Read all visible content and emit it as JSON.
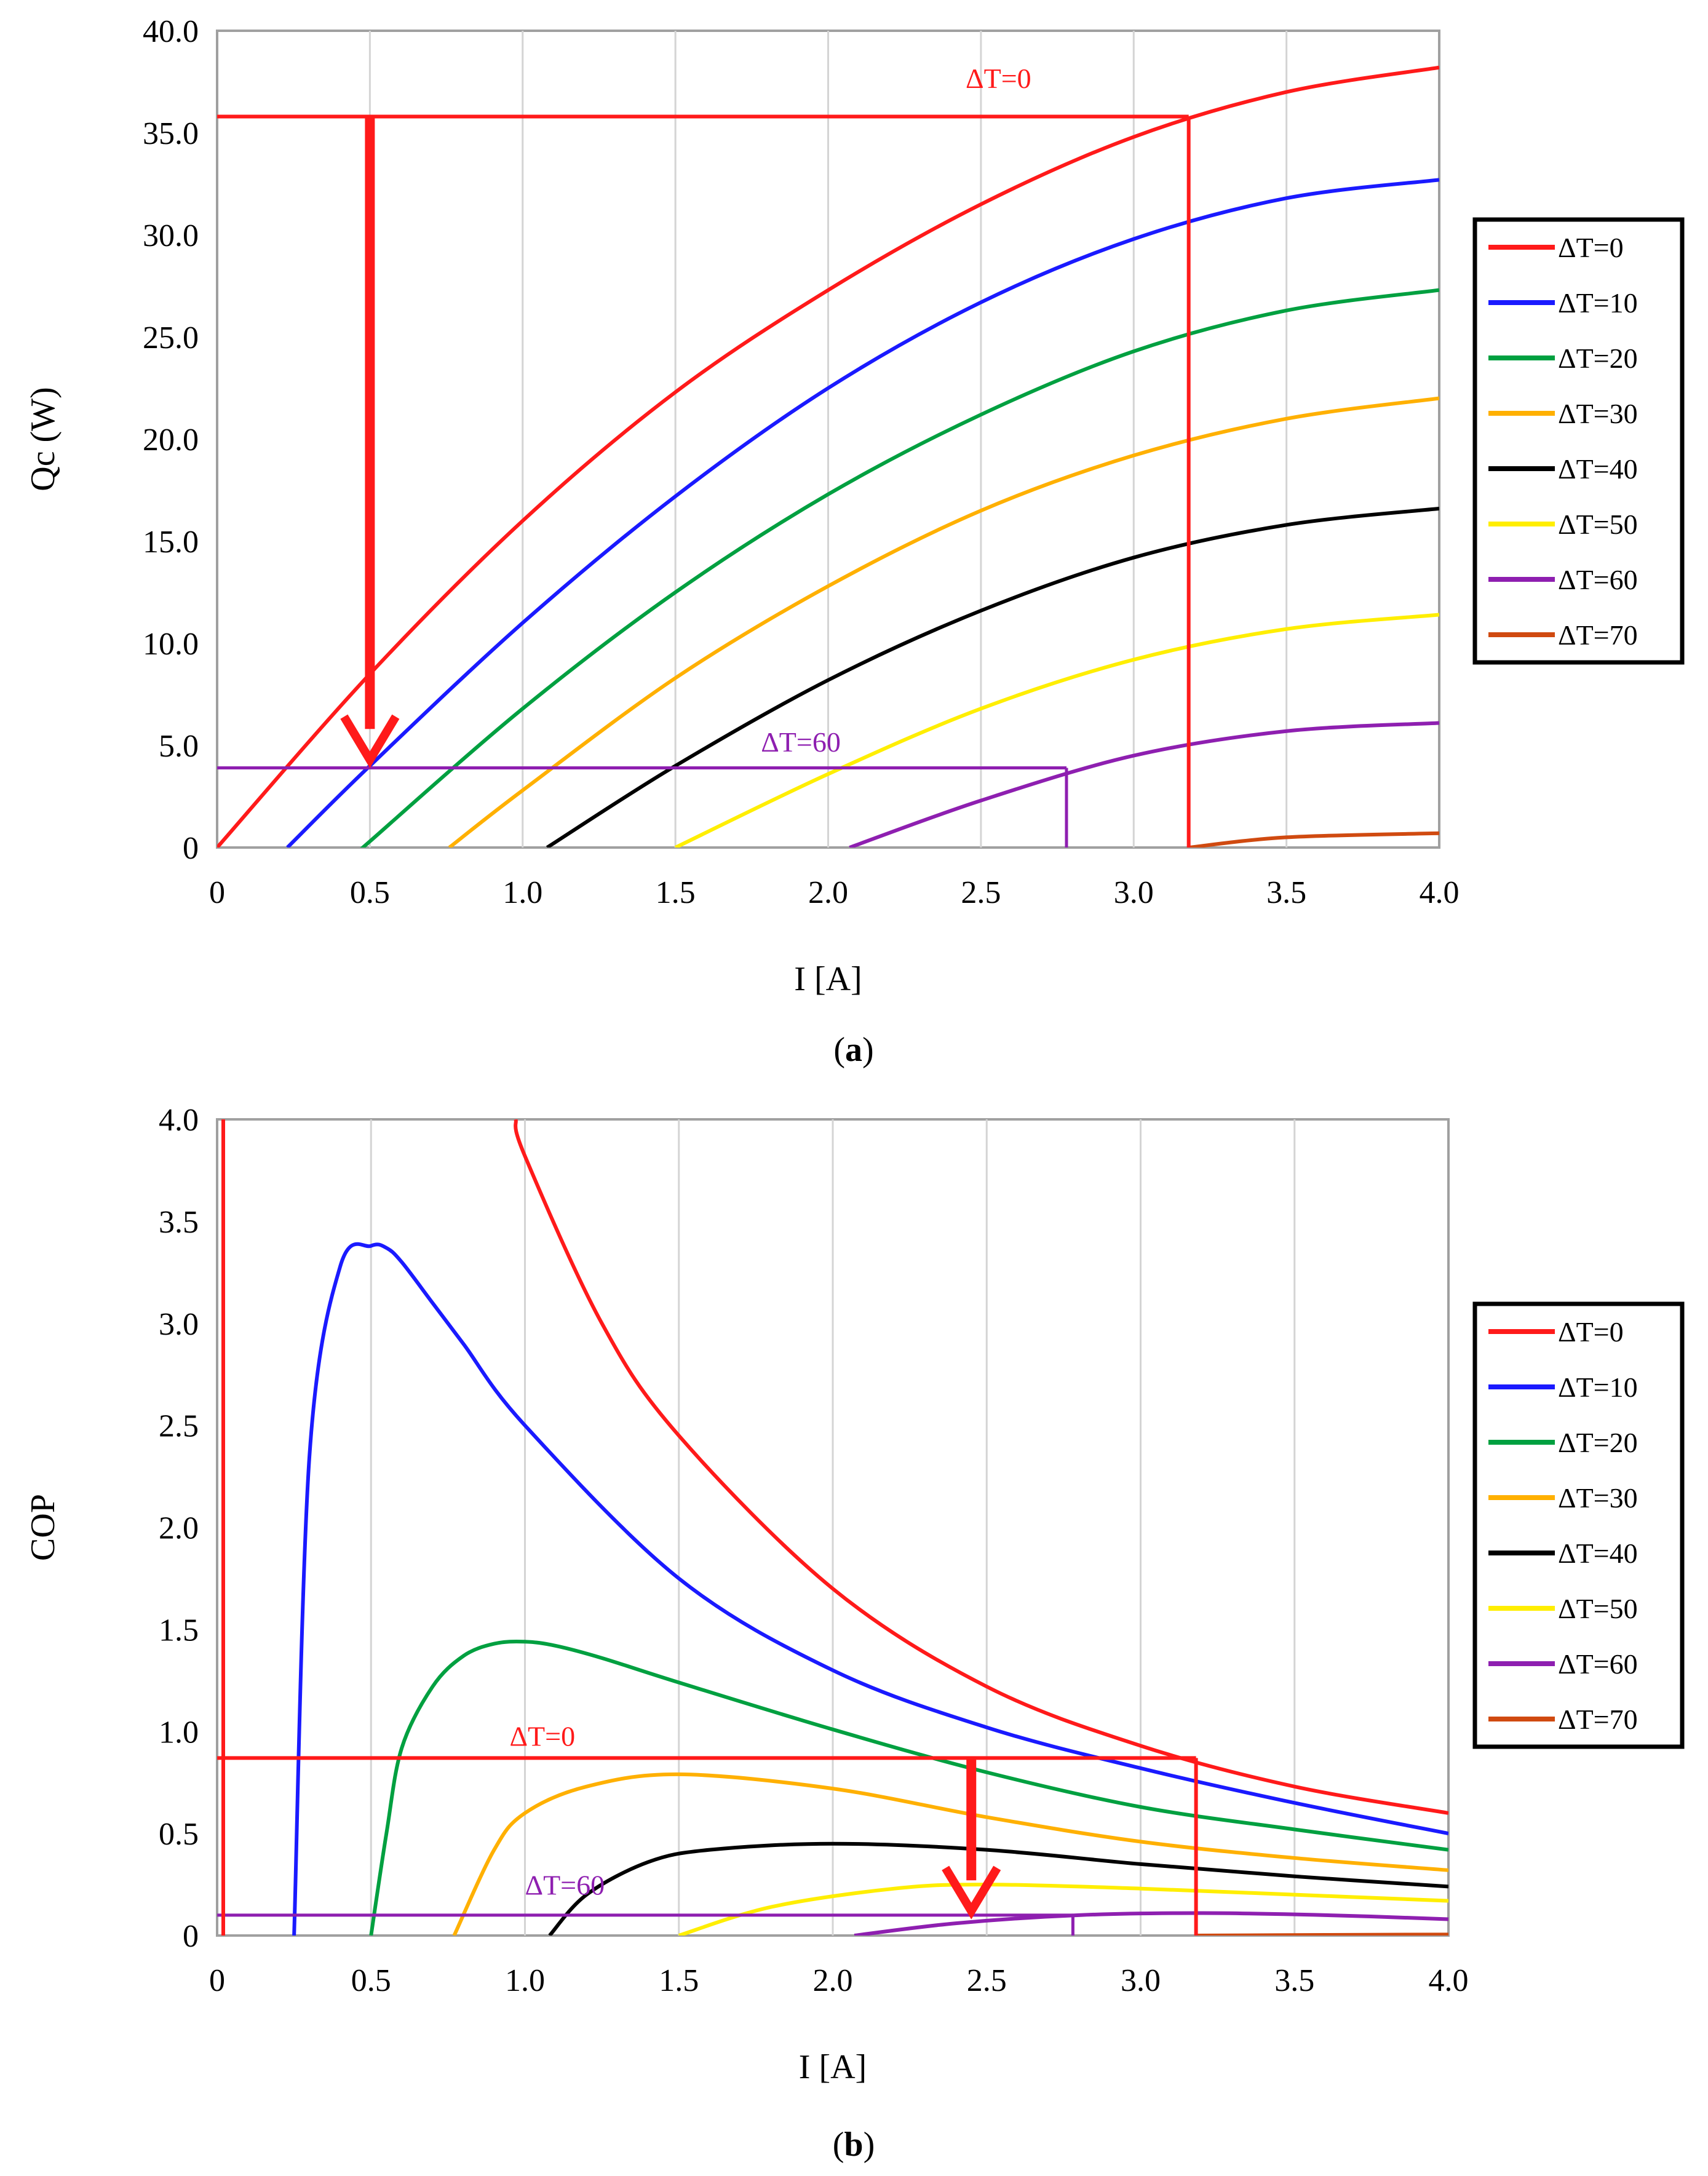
{
  "figure": {
    "caption_a": "a",
    "caption_b": "b"
  },
  "legend": [
    {
      "label": "ΔT=0",
      "color": "#ff1a1a"
    },
    {
      "label": "ΔT=10",
      "color": "#1a1aff"
    },
    {
      "label": "ΔT=20",
      "color": "#00a040"
    },
    {
      "label": "ΔT=30",
      "color": "#ffb000"
    },
    {
      "label": "ΔT=40",
      "color": "#000000"
    },
    {
      "label": "ΔT=50",
      "color": "#ffee00"
    },
    {
      "label": "ΔT=60",
      "color": "#8e1fb0"
    },
    {
      "label": "ΔT=70",
      "color": "#d04a10"
    }
  ],
  "chart_data": [
    {
      "panel": "a",
      "type": "line",
      "xlabel": "I [A]",
      "ylabel": "Qc (W)",
      "xlim": [
        0,
        4.0
      ],
      "ylim": [
        0,
        40.0
      ],
      "xticks": [
        "0",
        "0.5",
        "1.0",
        "1.5",
        "2.0",
        "2.5",
        "3.0",
        "3.5",
        "4.0"
      ],
      "yticks": [
        "0",
        "5.0",
        "10.0",
        "15.0",
        "20.0",
        "25.0",
        "30.0",
        "35.0",
        "40.0"
      ],
      "series": [
        {
          "name": "ΔT=0",
          "x": [
            0,
            0.5,
            1.0,
            1.5,
            2.0,
            2.5,
            3.0,
            3.5,
            4.0
          ],
          "values": [
            0,
            8.5,
            16.0,
            22.3,
            27.3,
            31.5,
            34.8,
            37.0,
            38.2
          ]
        },
        {
          "name": "ΔT=10",
          "x": [
            0.23,
            0.5,
            1.0,
            1.5,
            2.0,
            2.5,
            3.0,
            3.5,
            4.0
          ],
          "values": [
            0,
            4.0,
            11.0,
            17.2,
            22.5,
            26.7,
            29.8,
            31.8,
            32.7
          ]
        },
        {
          "name": "ΔT=20",
          "x": [
            0.48,
            0.5,
            1.0,
            1.5,
            2.0,
            2.5,
            3.0,
            3.5,
            4.0
          ],
          "values": [
            0,
            0.3,
            6.8,
            12.5,
            17.3,
            21.2,
            24.3,
            26.3,
            27.3
          ]
        },
        {
          "name": "ΔT=30",
          "x": [
            0.76,
            1.0,
            1.5,
            2.0,
            2.5,
            3.0,
            3.5,
            4.0
          ],
          "values": [
            0,
            2.8,
            8.3,
            12.8,
            16.5,
            19.2,
            21.0,
            22.0
          ]
        },
        {
          "name": "ΔT=40",
          "x": [
            1.08,
            1.5,
            2.0,
            2.5,
            3.0,
            3.5,
            4.0
          ],
          "values": [
            0,
            4.0,
            8.2,
            11.6,
            14.2,
            15.8,
            16.6
          ]
        },
        {
          "name": "ΔT=50",
          "x": [
            1.5,
            2.0,
            2.5,
            3.0,
            3.5,
            4.0
          ],
          "values": [
            0,
            3.6,
            6.8,
            9.2,
            10.7,
            11.4
          ]
        },
        {
          "name": "ΔT=60",
          "x": [
            2.07,
            2.5,
            3.0,
            3.5,
            4.0
          ],
          "values": [
            0,
            2.3,
            4.5,
            5.7,
            6.1
          ]
        },
        {
          "name": "ΔT=70",
          "x": [
            3.18,
            3.5,
            4.0
          ],
          "values": [
            0,
            0.5,
            0.7
          ]
        }
      ],
      "annotations": [
        {
          "text": "ΔT=0",
          "at_x": 2.45,
          "at_y": 37.2,
          "color": "#ff1a1a"
        },
        {
          "text": "ΔT=60",
          "at_x": 1.78,
          "at_y": 4.7,
          "color": "#8e1fb0"
        }
      ],
      "guides": {
        "dt0_level": 35.8,
        "dt0_current": 3.18,
        "arrow_current": 0.5,
        "arrow_to": 4.3,
        "dt60_level": 3.9,
        "dt60_current": 2.78
      }
    },
    {
      "panel": "b",
      "type": "line",
      "xlabel": "I [A]",
      "ylabel": "COP",
      "xlim": [
        0,
        4.0
      ],
      "ylim": [
        0,
        4.0
      ],
      "xticks": [
        "0",
        "0.5",
        "1.0",
        "1.5",
        "2.0",
        "2.5",
        "3.0",
        "3.5",
        "4.0"
      ],
      "yticks": [
        "0",
        "0.5",
        "1.0",
        "1.5",
        "2.0",
        "2.5",
        "3.0",
        "3.5",
        "4.0"
      ],
      "series": [
        {
          "name": "ΔT=0",
          "x": [
            0.97,
            1.0,
            1.25,
            1.5,
            2.0,
            2.5,
            3.0,
            3.5,
            4.0
          ],
          "values": [
            4.0,
            3.82,
            3.0,
            2.45,
            1.7,
            1.22,
            0.93,
            0.73,
            0.6
          ]
        },
        {
          "name": "ΔT=10",
          "x": [
            0.25,
            0.3,
            0.4,
            0.5,
            0.55,
            0.6,
            0.7,
            0.8,
            1.0,
            1.5,
            2.0,
            2.5,
            3.0,
            3.5,
            4.0
          ],
          "values": [
            0,
            2.35,
            3.28,
            3.38,
            3.37,
            3.3,
            3.1,
            2.9,
            2.5,
            1.75,
            1.3,
            1.02,
            0.82,
            0.65,
            0.5
          ]
        },
        {
          "name": "ΔT=20",
          "x": [
            0.5,
            0.55,
            0.6,
            0.7,
            0.8,
            0.9,
            1.0,
            1.1,
            1.25,
            1.5,
            2.0,
            2.5,
            3.0,
            3.5,
            4.0
          ],
          "values": [
            0,
            0.5,
            0.92,
            1.22,
            1.37,
            1.43,
            1.44,
            1.42,
            1.36,
            1.24,
            1.01,
            0.8,
            0.63,
            0.52,
            0.42
          ]
        },
        {
          "name": "ΔT=30",
          "x": [
            0.77,
            0.9,
            1.0,
            1.2,
            1.5,
            2.0,
            2.5,
            3.0,
            3.5,
            4.0
          ],
          "values": [
            0,
            0.42,
            0.6,
            0.73,
            0.79,
            0.72,
            0.58,
            0.46,
            0.38,
            0.32
          ]
        },
        {
          "name": "ΔT=40",
          "x": [
            1.08,
            1.2,
            1.4,
            1.6,
            2.0,
            2.5,
            3.0,
            3.5,
            4.0
          ],
          "values": [
            0,
            0.2,
            0.36,
            0.42,
            0.45,
            0.42,
            0.35,
            0.29,
            0.24
          ]
        },
        {
          "name": "ΔT=50",
          "x": [
            1.5,
            1.8,
            2.2,
            2.5,
            3.0,
            3.5,
            4.0
          ],
          "values": [
            0,
            0.14,
            0.23,
            0.25,
            0.23,
            0.2,
            0.17
          ]
        },
        {
          "name": "ΔT=60",
          "x": [
            2.07,
            2.4,
            2.8,
            3.2,
            3.6,
            4.0
          ],
          "values": [
            0,
            0.06,
            0.1,
            0.11,
            0.1,
            0.08
          ]
        },
        {
          "name": "ΔT=70",
          "x": [
            3.18,
            3.6,
            4.0
          ],
          "values": [
            0,
            0.003,
            0.005
          ]
        }
      ],
      "annotations": [
        {
          "text": "ΔT=0",
          "at_x": 0.95,
          "at_y": 0.93,
          "color": "#ff1a1a"
        },
        {
          "text": "ΔT=60",
          "at_x": 1.0,
          "at_y": 0.2,
          "color": "#8e1fb0"
        }
      ],
      "guides": {
        "dt0_level": 0.87,
        "dt0_current": 3.18,
        "arrow_current": 2.45,
        "arrow_to": 0.12,
        "dt60_level": 0.1,
        "dt60_current": 2.78
      }
    }
  ]
}
